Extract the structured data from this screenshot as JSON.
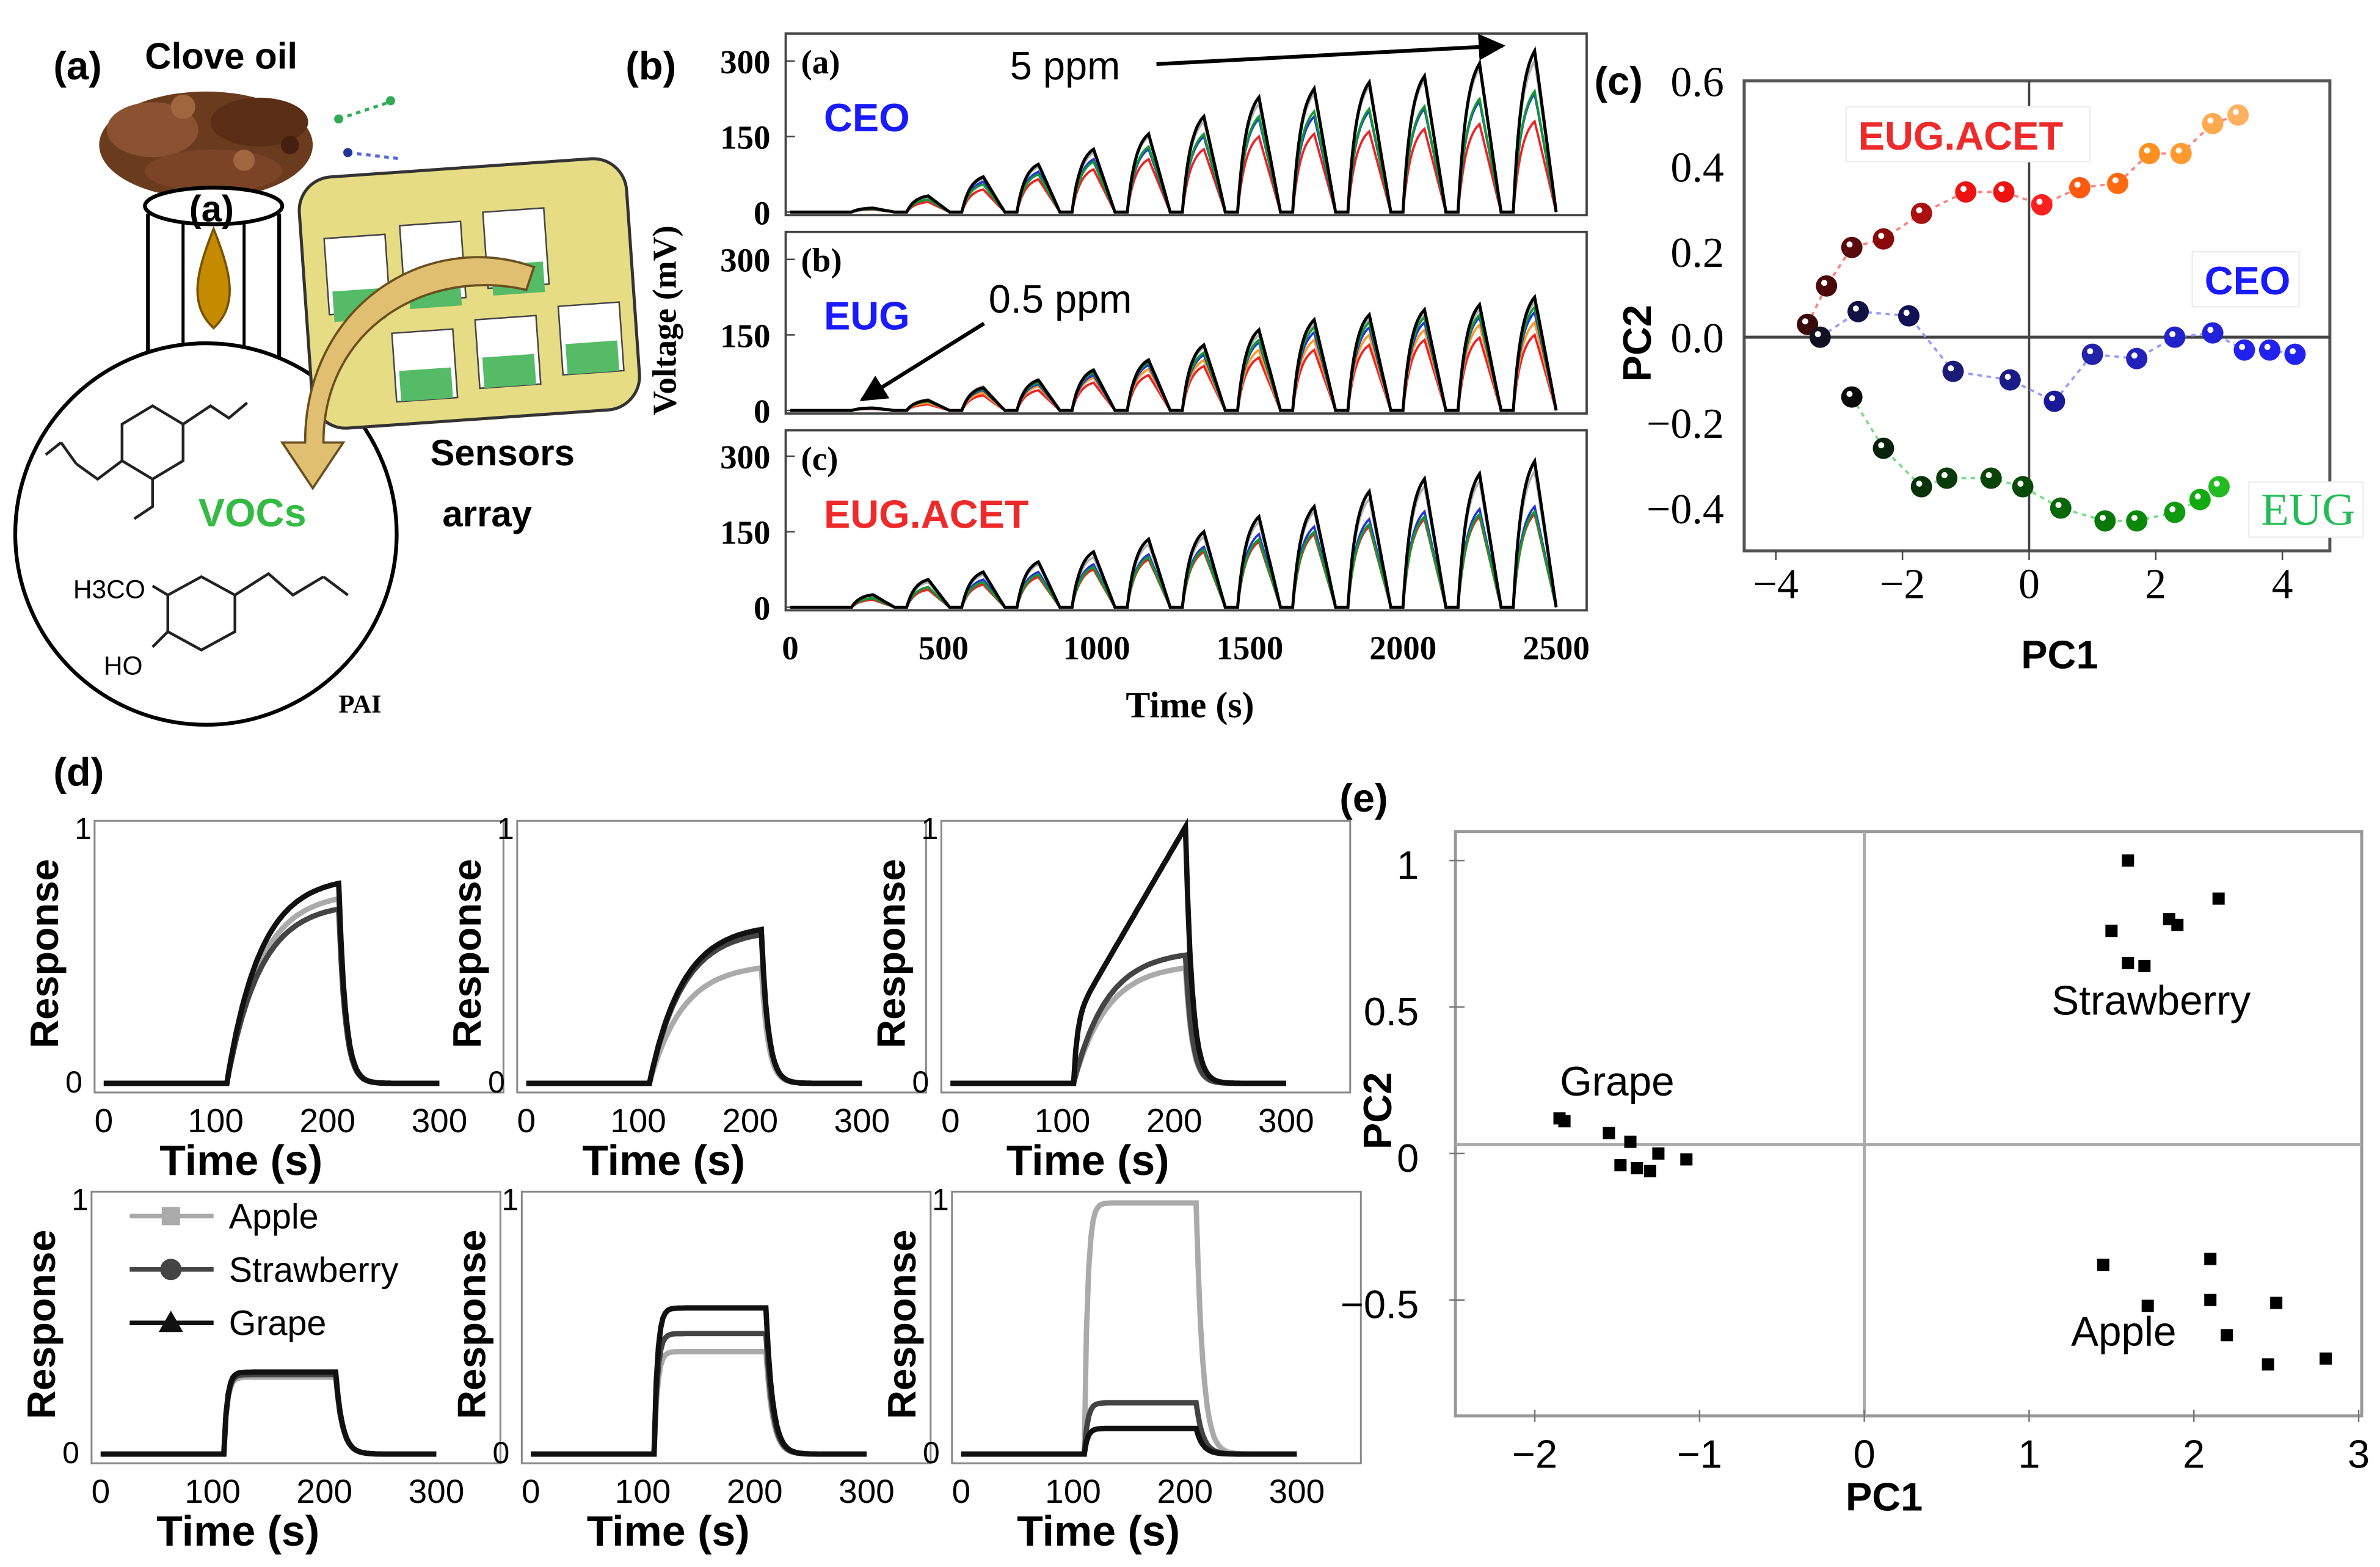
{
  "figure_labels": {
    "a": "(a)",
    "b": "(b)",
    "c": "(c)",
    "d": "(d)",
    "e": "(e)"
  },
  "panel_a": {
    "title": "Clove oil",
    "sub_label": "(a)",
    "vocs": "VOCs",
    "sensors": "Sensors",
    "array": "array",
    "h3co": "H3CO",
    "ho": "HO",
    "pan": "PAI"
  },
  "chart_data": [
    {
      "type": "line",
      "panel": "b",
      "xlabel": "Time (s)",
      "ylabel": "Voltage (mV)",
      "xlim": [
        0,
        2500
      ],
      "ylim": [
        0,
        300
      ],
      "xticks": [
        0,
        500,
        1000,
        1500,
        2000,
        2500
      ],
      "yticks": [
        0,
        150,
        300
      ],
      "pulse_starts": [
        200,
        380,
        560,
        740,
        920,
        1100,
        1280,
        1460,
        1640,
        1820,
        2000,
        2180,
        2360
      ],
      "subplots": [
        {
          "tag": "(a)",
          "label": "CEO",
          "label_color": "#1a1aff",
          "annotation": "5 ppm",
          "series": [
            {
              "name": "gray",
              "color": "#b0b0b0",
              "peaks": [
                7,
                30,
                65,
                90,
                118,
                150,
                180,
                215,
                235,
                250,
                262,
                285,
                300
              ]
            },
            {
              "name": "red",
              "color": "#ee2222",
              "peaks": [
                5,
                20,
                45,
                65,
                85,
                105,
                125,
                150,
                155,
                160,
                165,
                175,
                180
              ]
            },
            {
              "name": "blue",
              "color": "#2233dd",
              "peaks": [
                6,
                25,
                60,
                80,
                105,
                125,
                150,
                185,
                190,
                200,
                205,
                220,
                235
              ]
            },
            {
              "name": "green",
              "color": "#119933",
              "peaks": [
                6,
                25,
                55,
                75,
                100,
                130,
                155,
                190,
                200,
                205,
                210,
                225,
                240
              ]
            },
            {
              "name": "black",
              "color": "#000000",
              "peaks": [
                8,
                32,
                70,
                95,
                125,
                155,
                190,
                228,
                245,
                258,
                270,
                295,
                320
              ]
            }
          ]
        },
        {
          "tag": "(b)",
          "label": "EUG",
          "label_color": "#1a1aff",
          "annotation": "0.5 ppm",
          "series": [
            {
              "name": "gray",
              "color": "#b0b0b0",
              "peaks": [
                5,
                22,
                48,
                62,
                82,
                102,
                125,
                150,
                170,
                180,
                190,
                200,
                215
              ]
            },
            {
              "name": "red",
              "color": "#ee2222",
              "peaks": [
                3,
                12,
                30,
                40,
                55,
                70,
                88,
                105,
                120,
                130,
                140,
                145,
                150
              ]
            },
            {
              "name": "orange",
              "color": "#ff9922",
              "peaks": [
                4,
                15,
                35,
                48,
                65,
                82,
                100,
                120,
                140,
                150,
                160,
                170,
                175
              ]
            },
            {
              "name": "blue",
              "color": "#2233dd",
              "peaks": [
                4,
                18,
                40,
                52,
                70,
                90,
                110,
                135,
                155,
                165,
                175,
                185,
                195
              ]
            },
            {
              "name": "green",
              "color": "#119933",
              "peaks": [
                4,
                18,
                42,
                55,
                75,
                95,
                115,
                140,
                165,
                175,
                185,
                190,
                205
              ]
            },
            {
              "name": "black",
              "color": "#000000",
              "peaks": [
                5,
                20,
                45,
                60,
                80,
                100,
                130,
                160,
                180,
                190,
                200,
                210,
                225
              ]
            }
          ]
        },
        {
          "tag": "(c)",
          "label": "EUG.ACET",
          "label_color": "#ee2a2a",
          "annotation": "",
          "series": [
            {
              "name": "gray",
              "color": "#b0b0b0",
              "peaks": [
                22,
                50,
                65,
                85,
                100,
                125,
                140,
                170,
                190,
                215,
                240,
                250,
                270
              ]
            },
            {
              "name": "red",
              "color": "#ee2222",
              "peaks": [
                15,
                35,
                45,
                60,
                75,
                95,
                110,
                130,
                145,
                160,
                175,
                180,
                185
              ]
            },
            {
              "name": "blue",
              "color": "#2233dd",
              "peaks": [
                18,
                40,
                55,
                70,
                85,
                105,
                120,
                145,
                160,
                175,
                190,
                195,
                200
              ]
            },
            {
              "name": "green",
              "color": "#119933",
              "peaks": [
                18,
                40,
                50,
                65,
                80,
                100,
                115,
                135,
                150,
                165,
                180,
                185,
                190
              ]
            },
            {
              "name": "black",
              "color": "#000000",
              "peaks": [
                25,
                55,
                70,
                90,
                110,
                135,
                150,
                180,
                200,
                230,
                255,
                265,
                290
              ]
            }
          ]
        }
      ]
    },
    {
      "type": "scatter",
      "panel": "c",
      "xlabel": "PC1",
      "ylabel": "PC2",
      "xlim": [
        -4.5,
        4.75
      ],
      "ylim": [
        -0.5,
        0.6
      ],
      "xticks": [
        -4,
        -2,
        0,
        2,
        4
      ],
      "yticks": [
        0.6,
        0.4,
        0.2,
        0.0,
        -0.2,
        -0.4
      ],
      "ytick_labels": [
        "0.6",
        "0.4",
        "0.2",
        "0.0",
        "−0.2",
        "−0.4"
      ],
      "xtick_labels": [
        "−4",
        "−2",
        "0",
        "2",
        "4"
      ],
      "series": [
        {
          "name": "EUG.ACET",
          "label_color": "#ee2a2a",
          "line_color": "#ff8080",
          "x": [
            -3.5,
            -3.2,
            -2.8,
            -2.3,
            -1.7,
            -1.0,
            -0.4,
            0.2,
            0.8,
            1.4,
            1.9,
            2.4,
            2.9,
            3.3
          ],
          "y": [
            0.03,
            0.12,
            0.21,
            0.23,
            0.29,
            0.34,
            0.34,
            0.31,
            0.35,
            0.36,
            0.43,
            0.43,
            0.5,
            0.52
          ],
          "colors": [
            "#3a0a0a",
            "#4a0808",
            "#5a0a0a",
            "#8a0a0a",
            "#aa1010",
            "#ee1111",
            "#ee1111",
            "#ff2020",
            "#ff5a10",
            "#ff6a10",
            "#ff9020",
            "#ff9a30",
            "#ffaa50",
            "#ffb060"
          ]
        },
        {
          "name": "CEO",
          "label_color": "#1a1aff",
          "line_color": "#9999ff",
          "x": [
            -3.3,
            -2.7,
            -1.9,
            -1.2,
            -0.3,
            0.4,
            1.0,
            1.7,
            2.3,
            2.9,
            3.4,
            3.8,
            4.2
          ],
          "y": [
            0.0,
            0.06,
            0.05,
            -0.08,
            -0.1,
            -0.15,
            -0.04,
            -0.05,
            0.0,
            0.01,
            -0.03,
            -0.03,
            -0.04
          ],
          "colors": [
            "#111122",
            "#111144",
            "#111155",
            "#1a1a77",
            "#1a1a88",
            "#1a1a99",
            "#2222aa",
            "#2222bb",
            "#2222cc",
            "#2222dd",
            "#2222ee",
            "#2222ee",
            "#2222ee"
          ]
        },
        {
          "name": "EUG",
          "label_color": "#22bb55",
          "line_color": "#77dd88",
          "x": [
            -2.8,
            -2.3,
            -1.7,
            -1.3,
            -0.6,
            -0.1,
            0.5,
            1.2,
            1.7,
            2.3,
            2.7,
            3.0
          ],
          "y": [
            -0.14,
            -0.26,
            -0.35,
            -0.33,
            -0.33,
            -0.35,
            -0.4,
            -0.43,
            -0.43,
            -0.41,
            -0.38,
            -0.35
          ],
          "colors": [
            "#0a0a0a",
            "#0a220a",
            "#0a330a",
            "#0a3a0a",
            "#0a440a",
            "#0a4a0a",
            "#0a660a",
            "#0a770a",
            "#0a880a",
            "#119911",
            "#11aa11",
            "#22bb22"
          ]
        }
      ]
    },
    {
      "type": "line",
      "panel": "d",
      "xlabel": "Time (s)",
      "ylabel": "Response",
      "xlim": [
        0,
        300
      ],
      "ylim": [
        0,
        1
      ],
      "xticks": [
        0,
        100,
        200,
        300
      ],
      "yticks": [
        0,
        1
      ],
      "on_time": 110,
      "off_time": 210,
      "legend": [
        {
          "name": "Apple",
          "color": "#aaaaaa",
          "marker": "square"
        },
        {
          "name": "Strawberry",
          "color": "#444444",
          "marker": "circle"
        },
        {
          "name": "Grape",
          "color": "#111111",
          "marker": "triangle"
        }
      ],
      "plots": [
        {
          "shape": "curve",
          "levels": {
            "Apple": 0.72,
            "Strawberry": 0.68,
            "Grape": 0.78
          }
        },
        {
          "shape": "curve",
          "levels": {
            "Apple": 0.45,
            "Strawberry": 0.58,
            "Grape": 0.6
          }
        },
        {
          "shape": "mixed",
          "levels": {
            "Apple": 0.45,
            "Strawberry": 0.5,
            "Grape": 1.0
          }
        },
        {
          "shape": "step",
          "levels": {
            "Apple": 0.3,
            "Strawberry": 0.31,
            "Grape": 0.32
          }
        },
        {
          "shape": "step",
          "levels": {
            "Apple": 0.4,
            "Strawberry": 0.47,
            "Grape": 0.57
          }
        },
        {
          "shape": "step",
          "levels": {
            "Apple": 0.98,
            "Strawberry": 0.2,
            "Grape": 0.1
          }
        }
      ]
    },
    {
      "type": "scatter",
      "panel": "e",
      "xlabel": "PC1",
      "ylabel": "PC2",
      "xlim": [
        -2.4,
        3.0
      ],
      "ylim": [
        -0.78,
        1.1
      ],
      "xticks": [
        -2,
        -1,
        0,
        1,
        2,
        3
      ],
      "xtick_labels": [
        "−2",
        "−1",
        "0",
        "1",
        "2",
        "3"
      ],
      "yticks": [
        1,
        0.5,
        0,
        -0.5
      ],
      "ytick_labels": [
        "1",
        "0.5",
        "0",
        "−0.5"
      ],
      "clusters": [
        {
          "name": "Strawberry",
          "x": [
            1.6,
            2.15,
            1.85,
            1.9,
            1.5,
            1.6,
            1.7
          ],
          "y": [
            1.0,
            0.87,
            0.8,
            0.78,
            0.76,
            0.65,
            0.64
          ]
        },
        {
          "name": "Grape",
          "x": [
            -1.85,
            -1.82,
            -1.55,
            -1.42,
            -1.25,
            -1.08,
            -1.48,
            -1.38,
            -1.3
          ],
          "y": [
            0.12,
            0.11,
            0.07,
            0.04,
            0.0,
            -0.02,
            -0.04,
            -0.05,
            -0.06
          ]
        },
        {
          "name": "Apple",
          "x": [
            1.45,
            1.72,
            2.1,
            2.1,
            2.2,
            2.5,
            2.45,
            2.8
          ],
          "y": [
            -0.38,
            -0.52,
            -0.36,
            -0.5,
            -0.62,
            -0.51,
            -0.72,
            -0.7
          ]
        }
      ]
    }
  ]
}
